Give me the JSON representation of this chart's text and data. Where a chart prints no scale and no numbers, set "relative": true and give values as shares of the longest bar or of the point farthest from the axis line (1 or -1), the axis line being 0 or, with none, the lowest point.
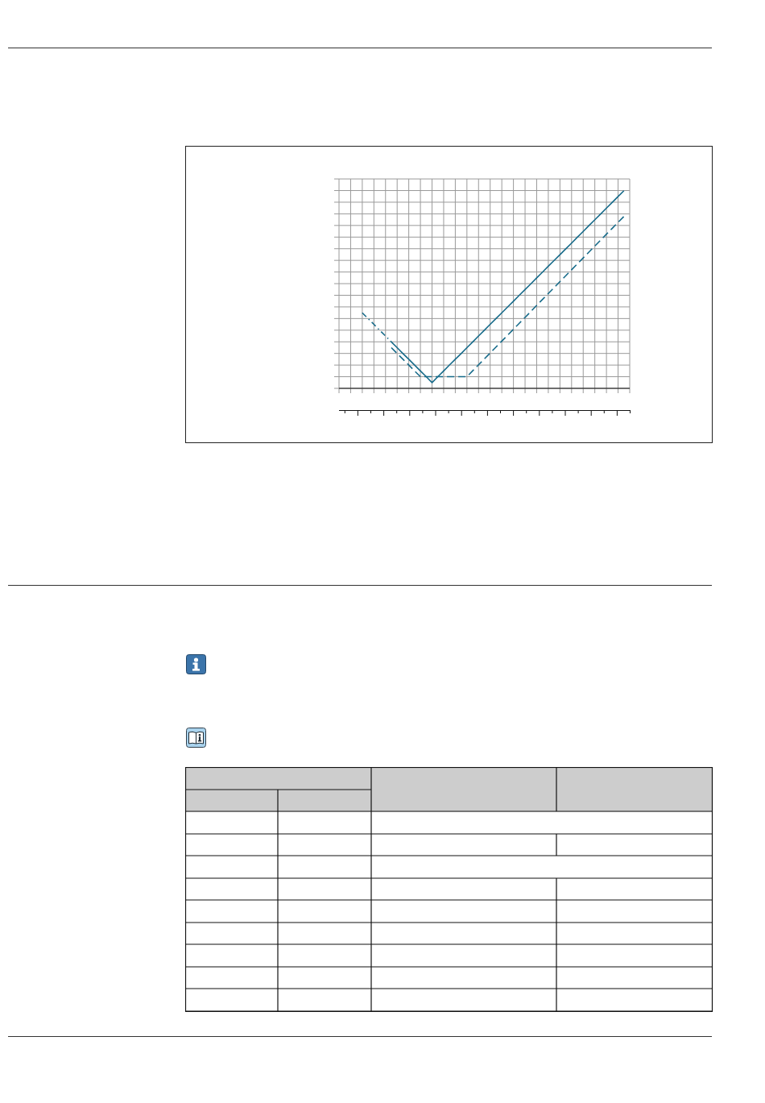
{
  "chart_data": {
    "type": "line",
    "relative": true,
    "grid": true,
    "marker": "none",
    "categories": [
      null,
      null,
      null,
      null,
      null,
      null,
      null,
      null,
      null,
      null,
      null,
      null,
      null,
      null,
      null,
      null,
      null,
      null,
      null,
      null,
      null,
      null,
      null,
      null,
      null,
      null,
      null,
      null,
      null,
      null,
      null,
      null,
      null,
      null,
      null,
      null,
      null,
      null,
      null,
      null,
      null,
      null,
      null,
      null,
      null,
      null,
      null,
      null,
      null,
      null,
      null
    ],
    "series": [
      {
        "color": "#176b8a",
        "line_style": "dashdot",
        "values": [
          null,
          null,
          null,
          null,
          0.382,
          0.353,
          0.324,
          0.294,
          0.265,
          0.235,
          null,
          null,
          null,
          null,
          null,
          null,
          null,
          null,
          null,
          null,
          null,
          null,
          null,
          null,
          null,
          null,
          null,
          null,
          null,
          null,
          null,
          null,
          null,
          null,
          null,
          null,
          null,
          null,
          null,
          null,
          null,
          null,
          null,
          null,
          null,
          null,
          null,
          null,
          null,
          null,
          null
        ]
      },
      {
        "color": "#176b8a",
        "line_style": "solid",
        "values": [
          null,
          null,
          null,
          null,
          null,
          null,
          null,
          null,
          null,
          0.235,
          0.206,
          0.176,
          0.147,
          0.118,
          0.088,
          0.059,
          0.029,
          0.059,
          0.088,
          0.118,
          0.147,
          0.176,
          0.206,
          0.235,
          0.265,
          0.294,
          0.324,
          0.353,
          0.382,
          0.412,
          0.441,
          0.471,
          0.5,
          0.529,
          0.559,
          0.588,
          0.618,
          0.647,
          0.676,
          0.706,
          0.735,
          0.765,
          0.794,
          0.824,
          0.853,
          0.882,
          0.912,
          0.941,
          0.971,
          1,
          null
        ]
      },
      {
        "color": "#176b8a",
        "line_style": "dashed",
        "values": [
          null,
          null,
          null,
          null,
          null,
          null,
          null,
          null,
          null,
          0.206,
          0.176,
          0.147,
          0.118,
          0.088,
          0.059,
          0.059,
          0.059,
          0.059,
          0.059,
          0.059,
          0.059,
          0.059,
          0.059,
          0.089,
          0.119,
          0.149,
          0.179,
          0.209,
          0.239,
          0.269,
          0.299,
          0.329,
          0.359,
          0.389,
          0.42,
          0.45,
          0.48,
          0.51,
          0.54,
          0.57,
          0.6,
          0.63,
          0.66,
          0.69,
          0.72,
          0.75,
          0.78,
          0.81,
          0.84,
          0.87,
          null
        ]
      }
    ]
  }
}
